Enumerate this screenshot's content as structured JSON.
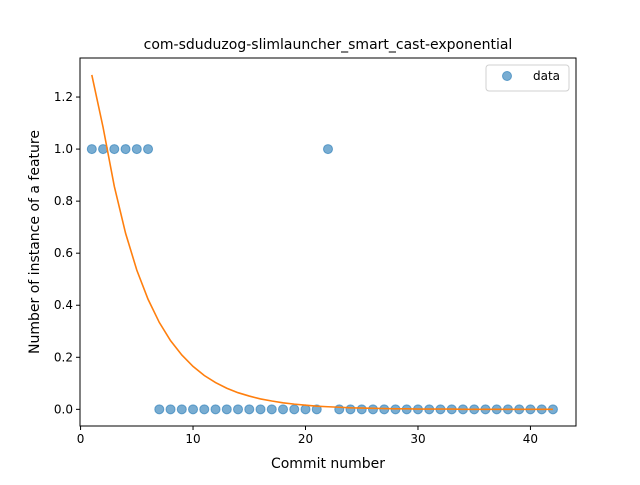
{
  "chart_data": {
    "type": "scatter",
    "title": "com-sduduzog-slimlauncher_smart_cast-exponential",
    "xlabel": "Commit number",
    "ylabel": "Number of instance of a feature",
    "xlim": [
      -0.05,
      44.05
    ],
    "ylim": [
      -0.064,
      1.35
    ],
    "xticks": [
      0,
      10,
      20,
      30,
      40
    ],
    "yticks": [
      0.0,
      0.2,
      0.4,
      0.6,
      0.8,
      1.0,
      1.2
    ],
    "xtick_labels": [
      "0",
      "10",
      "20",
      "30",
      "40"
    ],
    "ytick_labels": [
      "0.0",
      "0.2",
      "0.4",
      "0.6",
      "0.8",
      "1.0",
      "1.2"
    ],
    "grid": false,
    "legend": {
      "position": "top-right",
      "entries": [
        "data"
      ]
    },
    "series": [
      {
        "name": "data",
        "kind": "scatter",
        "color": "#1f77b4",
        "x": [
          1,
          2,
          3,
          4,
          5,
          6,
          7,
          8,
          9,
          10,
          11,
          12,
          13,
          14,
          15,
          16,
          17,
          18,
          19,
          20,
          21,
          22,
          23,
          24,
          25,
          26,
          27,
          28,
          29,
          30,
          31,
          32,
          33,
          34,
          35,
          36,
          37,
          38,
          39,
          40,
          41,
          42
        ],
        "y": [
          1,
          1,
          1,
          1,
          1,
          1,
          0,
          0,
          0,
          0,
          0,
          0,
          0,
          0,
          0,
          0,
          0,
          0,
          0,
          0,
          0,
          1,
          0,
          0,
          0,
          0,
          0,
          0,
          0,
          0,
          0,
          0,
          0,
          0,
          0,
          0,
          0,
          0,
          0,
          0,
          0,
          0
        ]
      },
      {
        "kind": "line",
        "color": "#ff7f0e",
        "x": [
          1,
          2,
          3,
          4,
          5,
          6,
          7,
          8,
          9,
          10,
          11,
          12,
          13,
          14,
          15,
          16,
          17,
          18,
          19,
          20,
          21,
          22,
          23,
          24,
          25,
          26,
          27,
          28,
          29,
          30,
          31,
          32,
          33,
          34,
          35,
          36,
          37,
          38,
          39,
          40,
          41,
          42
        ],
        "y": [
          1.285,
          1.084,
          0.857,
          0.677,
          0.535,
          0.423,
          0.334,
          0.264,
          0.209,
          0.165,
          0.13,
          0.103,
          0.081,
          0.064,
          0.051,
          0.04,
          0.032,
          0.025,
          0.02,
          0.016,
          0.012,
          0.01,
          0.008,
          0.006,
          0.005,
          0.004,
          0.003,
          0.002,
          0.002,
          0.001,
          0.001,
          0.001,
          0.001,
          0.0,
          0.0,
          0.0,
          0.0,
          0.0,
          0.0,
          0.0,
          0.0,
          0.0
        ]
      }
    ]
  }
}
